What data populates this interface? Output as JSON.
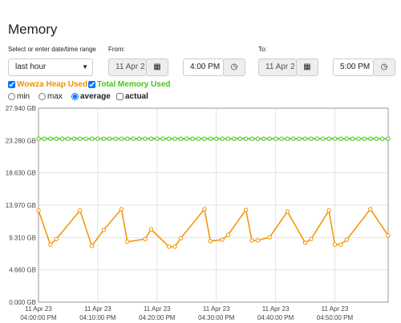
{
  "header": {
    "title": "Memory"
  },
  "controls": {
    "range_label": "Select or enter date/time range",
    "range_value": "last hour",
    "from_label": "From:",
    "from_date": "11 Apr 2",
    "from_time": "4:00 PM",
    "to_label": "To:",
    "to_date": "11 Apr 2",
    "to_time": "5:00 PM",
    "modes": [
      "min",
      "max",
      "average",
      "actual"
    ]
  },
  "chart_data": {
    "type": "line",
    "xlim": [
      "04:00:00 PM",
      "04:59:00 PM"
    ],
    "xticks": [
      {
        "date": "11 Apr 23",
        "time": "04:00:00 PM"
      },
      {
        "date": "11 Apr 23",
        "time": "04:10:00 PM"
      },
      {
        "date": "11 Apr 23",
        "time": "04:20:00 PM"
      },
      {
        "date": "11 Apr 23",
        "time": "04:30:00 PM"
      },
      {
        "date": "11 Apr 23",
        "time": "04:40:00 PM"
      },
      {
        "date": "11 Apr 23",
        "time": "04:50:00 PM"
      }
    ],
    "ylim": [
      0,
      27.94
    ],
    "yticks": [
      {
        "value": 0,
        "label": "0.000 GB"
      },
      {
        "value": 4.66,
        "label": "4.660 GB"
      },
      {
        "value": 9.31,
        "label": "9.310 GB"
      },
      {
        "value": 13.97,
        "label": "13.970 GB"
      },
      {
        "value": 18.63,
        "label": "18.630 GB"
      },
      {
        "value": 23.28,
        "label": "23.280 GB"
      },
      {
        "value": 27.94,
        "label": "27.940 GB"
      }
    ],
    "grid": true,
    "series": [
      {
        "name": "Wowza Heap Used",
        "color": "#f39200",
        "x": [
          "04:00:00 PM",
          "04:02:00 PM",
          "04:03:00 PM",
          "04:07:00 PM",
          "04:09:00 PM",
          "04:11:00 PM",
          "04:14:00 PM",
          "04:15:00 PM",
          "04:18:00 PM",
          "04:19:00 PM",
          "04:22:00 PM",
          "04:23:00 PM",
          "04:24:00 PM",
          "04:28:00 PM",
          "04:29:00 PM",
          "04:31:00 PM",
          "04:32:00 PM",
          "04:35:00 PM",
          "04:36:00 PM",
          "04:37:00 PM",
          "04:39:00 PM",
          "04:42:00 PM",
          "04:45:00 PM",
          "04:46:00 PM",
          "04:49:00 PM",
          "04:50:00 PM",
          "04:51:00 PM",
          "04:52:00 PM",
          "04:56:00 PM",
          "04:59:00 PM"
        ],
        "values": [
          13.2,
          8.3,
          9.1,
          13.2,
          8.1,
          10.4,
          13.4,
          8.7,
          9.1,
          10.5,
          8.0,
          8.0,
          9.2,
          13.4,
          8.8,
          9.0,
          9.7,
          13.3,
          8.9,
          8.9,
          9.35,
          13.05,
          8.55,
          9.1,
          13.2,
          8.3,
          8.3,
          9.0,
          13.4,
          9.6
        ]
      },
      {
        "name": "Total Memory Used",
        "color": "#4cc31a",
        "x": [
          "04:00:00 PM",
          "04:01:00 PM",
          "04:02:00 PM",
          "04:03:00 PM",
          "04:04:00 PM",
          "04:05:00 PM",
          "04:06:00 PM",
          "04:07:00 PM",
          "04:08:00 PM",
          "04:09:00 PM",
          "04:10:00 PM",
          "04:11:00 PM",
          "04:12:00 PM",
          "04:13:00 PM",
          "04:14:00 PM",
          "04:15:00 PM",
          "04:16:00 PM",
          "04:17:00 PM",
          "04:18:00 PM",
          "04:19:00 PM",
          "04:20:00 PM",
          "04:21:00 PM",
          "04:22:00 PM",
          "04:23:00 PM",
          "04:24:00 PM",
          "04:25:00 PM",
          "04:26:00 PM",
          "04:27:00 PM",
          "04:28:00 PM",
          "04:29:00 PM",
          "04:30:00 PM",
          "04:31:00 PM",
          "04:32:00 PM",
          "04:33:00 PM",
          "04:34:00 PM",
          "04:35:00 PM",
          "04:36:00 PM",
          "04:37:00 PM",
          "04:38:00 PM",
          "04:39:00 PM",
          "04:40:00 PM",
          "04:41:00 PM",
          "04:42:00 PM",
          "04:43:00 PM",
          "04:44:00 PM",
          "04:45:00 PM",
          "04:46:00 PM",
          "04:47:00 PM",
          "04:48:00 PM",
          "04:49:00 PM",
          "04:50:00 PM",
          "04:51:00 PM",
          "04:52:00 PM",
          "04:53:00 PM",
          "04:54:00 PM",
          "04:55:00 PM",
          "04:56:00 PM",
          "04:57:00 PM",
          "04:58:00 PM",
          "04:59:00 PM"
        ],
        "values": [
          23.55,
          23.55,
          23.55,
          23.55,
          23.55,
          23.55,
          23.55,
          23.55,
          23.55,
          23.55,
          23.55,
          23.55,
          23.55,
          23.55,
          23.55,
          23.55,
          23.55,
          23.55,
          23.55,
          23.55,
          23.55,
          23.55,
          23.55,
          23.55,
          23.55,
          23.55,
          23.55,
          23.55,
          23.55,
          23.55,
          23.55,
          23.55,
          23.55,
          23.55,
          23.55,
          23.55,
          23.55,
          23.55,
          23.55,
          23.55,
          23.55,
          23.55,
          23.55,
          23.55,
          23.55,
          23.55,
          23.55,
          23.55,
          23.55,
          23.55,
          23.55,
          23.55,
          23.55,
          23.55,
          23.55,
          23.55,
          23.55,
          23.55,
          23.55,
          23.55
        ]
      }
    ]
  }
}
